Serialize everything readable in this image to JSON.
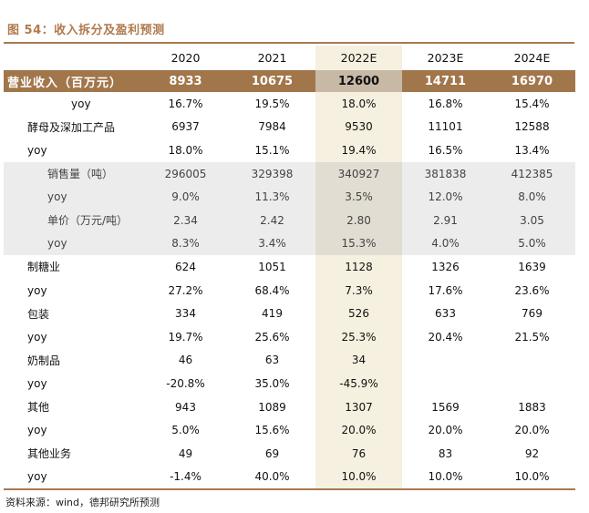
{
  "figure_title": "图 54：收入拆分及盈利预测",
  "source_note": "资料来源：wind，德邦研究所预测",
  "headers": [
    "",
    "2020",
    "2021",
    "2022E",
    "2023E",
    "2024E"
  ],
  "rows": [
    {
      "label": "营业收入（百万元）",
      "values": [
        "8933",
        "10675",
        "12600",
        "14711",
        "16970"
      ]
    },
    {
      "label": "yoy",
      "values": [
        "16.7%",
        "19.5%",
        "18.0%",
        "16.8%",
        "15.4%"
      ]
    },
    {
      "label": "酵母及深加工产品",
      "values": [
        "6937",
        "7984",
        "9530",
        "11101",
        "12588"
      ]
    },
    {
      "label": "yoy",
      "values": [
        "18.0%",
        "15.1%",
        "19.4%",
        "16.5%",
        "13.4%"
      ]
    },
    {
      "label": "销售量（吨）",
      "values": [
        "296005",
        "329398",
        "340927",
        "381838",
        "412385"
      ]
    },
    {
      "label": "yoy",
      "values": [
        "9.0%",
        "11.3%",
        "3.5%",
        "12.0%",
        "8.0%"
      ]
    },
    {
      "label": "单价（万元/吨）",
      "values": [
        "2.34",
        "2.42",
        "2.80",
        "2.91",
        "3.05"
      ]
    },
    {
      "label": "yoy",
      "values": [
        "8.3%",
        "3.4%",
        "15.3%",
        "4.0%",
        "5.0%"
      ]
    },
    {
      "label": "制糖业",
      "values": [
        "624",
        "1051",
        "1128",
        "1326",
        "1639"
      ]
    },
    {
      "label": "yoy",
      "values": [
        "27.2%",
        "68.4%",
        "7.3%",
        "17.6%",
        "23.6%"
      ]
    },
    {
      "label": "包装",
      "values": [
        "334",
        "419",
        "526",
        "633",
        "769"
      ]
    },
    {
      "label": "yoy",
      "values": [
        "19.7%",
        "25.6%",
        "25.3%",
        "20.4%",
        "21.5%"
      ]
    },
    {
      "label": "奶制品",
      "values": [
        "46",
        "63",
        "34",
        "",
        ""
      ]
    },
    {
      "label": "yoy",
      "values": [
        "-20.8%",
        "35.0%",
        "-45.9%",
        "",
        ""
      ]
    },
    {
      "label": "其他",
      "values": [
        "943",
        "1089",
        "1307",
        "1569",
        "1883"
      ]
    },
    {
      "label": "yoy",
      "values": [
        "5.0%",
        "15.6%",
        "20.0%",
        "20.0%",
        "20.0%"
      ]
    },
    {
      "label": "其他业务",
      "values": [
        "49",
        "69",
        "76",
        "83",
        "92"
      ]
    },
    {
      "label": "yoy",
      "values": [
        "-1.4%",
        "40.0%",
        "10.0%",
        "10.0%",
        "10.0%"
      ]
    }
  ]
}
